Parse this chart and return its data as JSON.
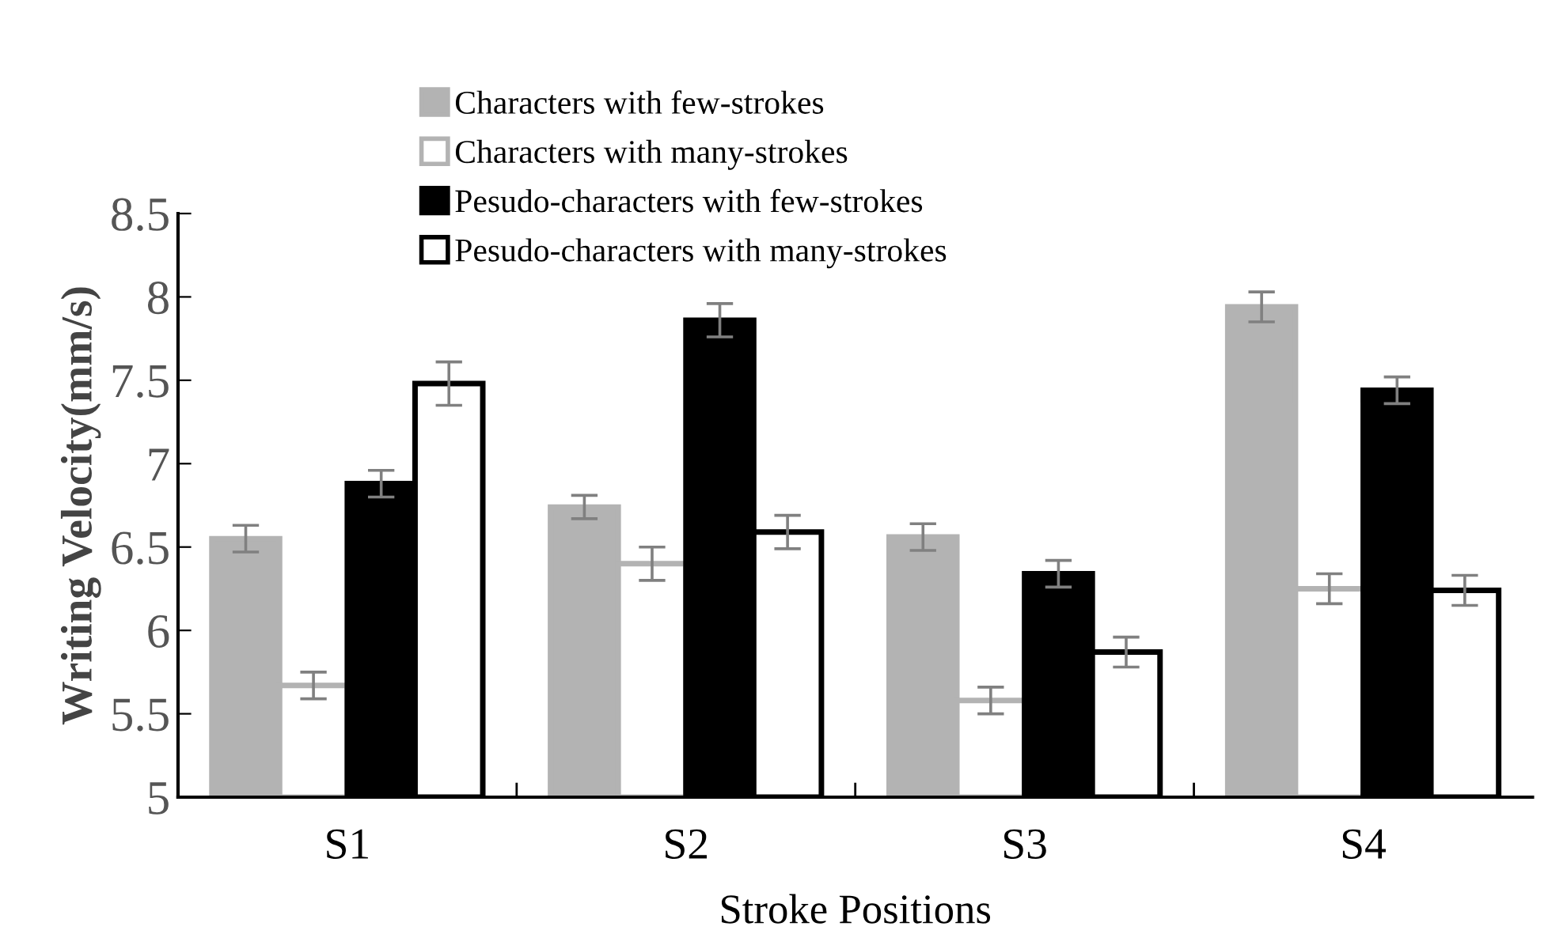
{
  "chart_data": {
    "type": "bar",
    "xlabel": "Stroke Positions",
    "ylabel": "Writing Velocity(mm/s)",
    "categories": [
      "S1",
      "S2",
      "S3",
      "S4"
    ],
    "series": [
      {
        "name": "Characters with few-strokes",
        "color": "#b3b3b3",
        "colors": [
          "#b3b3b3",
          "#b3b3b3",
          "#b3b3b3",
          "#b3b3b3"
        ],
        "values": [
          6.55,
          6.74,
          6.56,
          7.94
        ],
        "errors": [
          0.08,
          0.07,
          0.08,
          0.09
        ]
      },
      {
        "name": "Characters with many-strokes",
        "color": "#b3b3b3",
        "colors": [
          "#ffffff",
          "#ffffff",
          "#ffffff",
          "#ffffff"
        ],
        "values": [
          5.67,
          6.4,
          5.58,
          6.25
        ],
        "errors": [
          0.08,
          0.1,
          0.08,
          0.09
        ]
      },
      {
        "name": "Pesudo-characters with few-strokes",
        "color": "#000000",
        "colors": [
          "#000000",
          "#000000",
          "#000000",
          "#000000"
        ],
        "values": [
          6.88,
          7.86,
          6.34,
          7.44
        ],
        "errors": [
          0.08,
          0.1,
          0.08,
          0.08
        ]
      },
      {
        "name": "Pesudo-characters with many-strokes",
        "color": "#000000",
        "colors": [
          "#ffffff",
          "#ffffff",
          "#ffffff",
          "#ffffff"
        ],
        "values": [
          7.48,
          6.59,
          5.87,
          6.24
        ],
        "errors": [
          0.13,
          0.1,
          0.09,
          0.09
        ]
      }
    ],
    "ylim": [
      5,
      8.5
    ],
    "yticks": [
      5,
      5.5,
      6,
      6.5,
      7,
      7.5,
      8,
      8.5
    ],
    "grid": false,
    "legend": "top"
  }
}
